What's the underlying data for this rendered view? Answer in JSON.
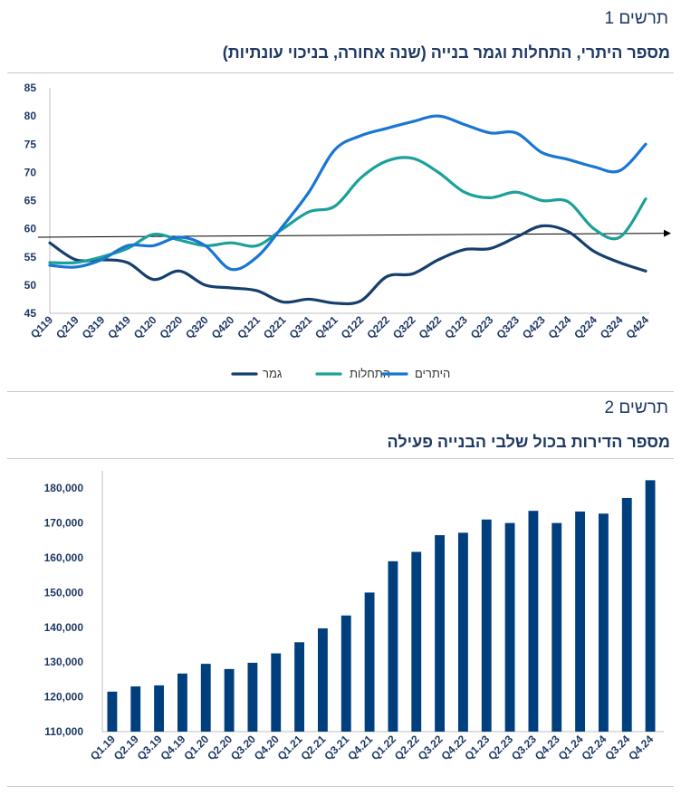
{
  "fig1": {
    "label": "תרשים 1",
    "title": "מספר היתרי, התחלות וגמר בנייה (שנה אחורה, בניכוי עונתיות)"
  },
  "fig2": {
    "label": "תרשים 2",
    "title": "מספר הדירות בכול שלבי הבנייה פעילה"
  },
  "chart_data": [
    {
      "type": "line",
      "categories": [
        "Q119",
        "Q219",
        "Q319",
        "Q419",
        "Q120",
        "Q220",
        "Q320",
        "Q420",
        "Q121",
        "Q221",
        "Q321",
        "Q421",
        "Q122",
        "Q222",
        "Q322",
        "Q422",
        "Q123",
        "Q223",
        "Q323",
        "Q423",
        "Q124",
        "Q224",
        "Q324",
        "Q424"
      ],
      "ylim": [
        45,
        85
      ],
      "yticks": [
        45,
        50,
        55,
        60,
        65,
        70,
        75,
        80,
        85
      ],
      "grid": false,
      "legend": "bottom",
      "reference_line": {
        "from": 58.5,
        "to": 59.2
      },
      "series": [
        {
          "name": "גמר",
          "color": "#163f6e",
          "values": [
            57.5,
            54.5,
            54.5,
            54.0,
            51.0,
            52.5,
            50.0,
            49.5,
            49.0,
            47.0,
            47.5,
            46.8,
            47.2,
            51.5,
            52.0,
            54.5,
            56.3,
            56.5,
            58.5,
            60.5,
            59.5,
            56.0,
            54.0,
            52.5
          ]
        },
        {
          "name": "התחלות",
          "color": "#1ba09a",
          "values": [
            54.0,
            54.0,
            55.0,
            56.5,
            59.0,
            58.0,
            57.0,
            57.5,
            57.0,
            60.0,
            63.0,
            64.0,
            69.0,
            72.0,
            72.5,
            70.0,
            66.5,
            65.5,
            66.5,
            65.0,
            64.8,
            60.0,
            58.5,
            65.3
          ]
        },
        {
          "name": "היתרים",
          "color": "#1976d2",
          "values": [
            53.5,
            53.2,
            54.5,
            57.0,
            57.0,
            58.5,
            57.0,
            52.8,
            55.0,
            60.5,
            66.5,
            74.0,
            76.5,
            77.8,
            79.0,
            80.0,
            78.5,
            77.0,
            77.0,
            73.5,
            72.3,
            71.0,
            70.3,
            75.0
          ]
        }
      ]
    },
    {
      "type": "bar",
      "categories": [
        "Q1.19",
        "Q2.19",
        "Q3.19",
        "Q4.19",
        "Q1.20",
        "Q2.20",
        "Q3.20",
        "Q4.20",
        "Q1.21",
        "Q2.21",
        "Q3.21",
        "Q4.21",
        "Q1.22",
        "Q2.22",
        "Q3.22",
        "Q4.22",
        "Q1.23",
        "Q2.23",
        "Q3.23",
        "Q4.23",
        "Q1.24",
        "Q2.24",
        "Q3.24",
        "Q4.24"
      ],
      "values": [
        121500,
        123000,
        123300,
        126700,
        129500,
        128000,
        129800,
        132500,
        135700,
        139700,
        143400,
        150000,
        159000,
        161700,
        166500,
        167200,
        171000,
        170000,
        173500,
        170000,
        173300,
        172700,
        177200,
        182300
      ],
      "ylim": [
        110000,
        185000
      ],
      "yticks": [
        110000,
        120000,
        130000,
        140000,
        150000,
        160000,
        170000,
        180000
      ],
      "ytick_labels": [
        "110,000",
        "120,000",
        "130,000",
        "140,000",
        "150,000",
        "160,000",
        "170,000",
        "180,000"
      ],
      "color": "#003f7d",
      "grid": false
    }
  ]
}
